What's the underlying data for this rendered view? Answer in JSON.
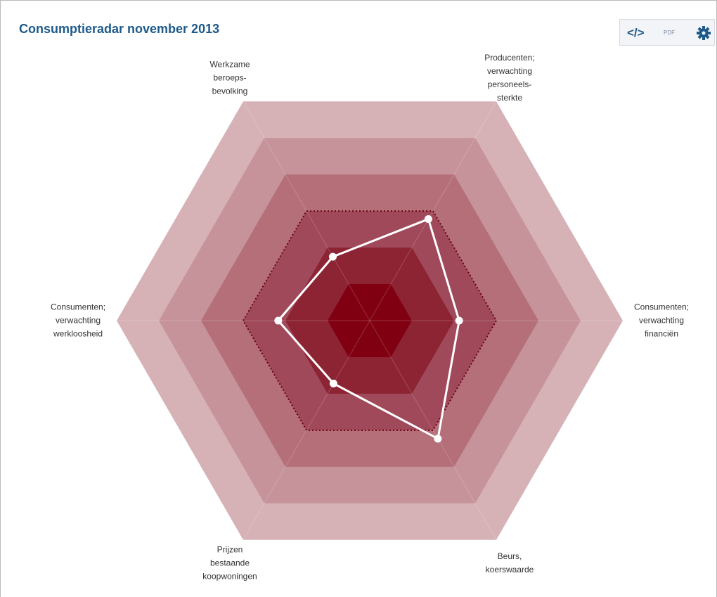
{
  "chart_data": {
    "type": "radar",
    "title": "Consumptieradar november 2013",
    "categories": [
      "Werkzame\nberoeps-\nbevolking",
      "Producenten;\nverwachting\npersoneels-\nsterkte",
      "Consumenten;\nverwachting\nfinanciën",
      "Beurs,\nkoerswaarde",
      "Prijzen\nbestaande\nkoopwoningen",
      "Consumenten;\nverwachting\nwerkloosheid"
    ],
    "values": [
      1.75,
      2.78,
      2.12,
      3.23,
      1.72,
      2.17
    ],
    "color": "#ffffff",
    "rlim": [
      0,
      6
    ],
    "rings": [
      1,
      2,
      3,
      4,
      5,
      6
    ],
    "ring_colors": [
      "#800012",
      "#8d2434",
      "#a0495a",
      "#b46f79",
      "#c6939a",
      "#d6b2b7"
    ],
    "reference": 3,
    "toolbar": [
      "</>",
      "PDF"
    ]
  }
}
